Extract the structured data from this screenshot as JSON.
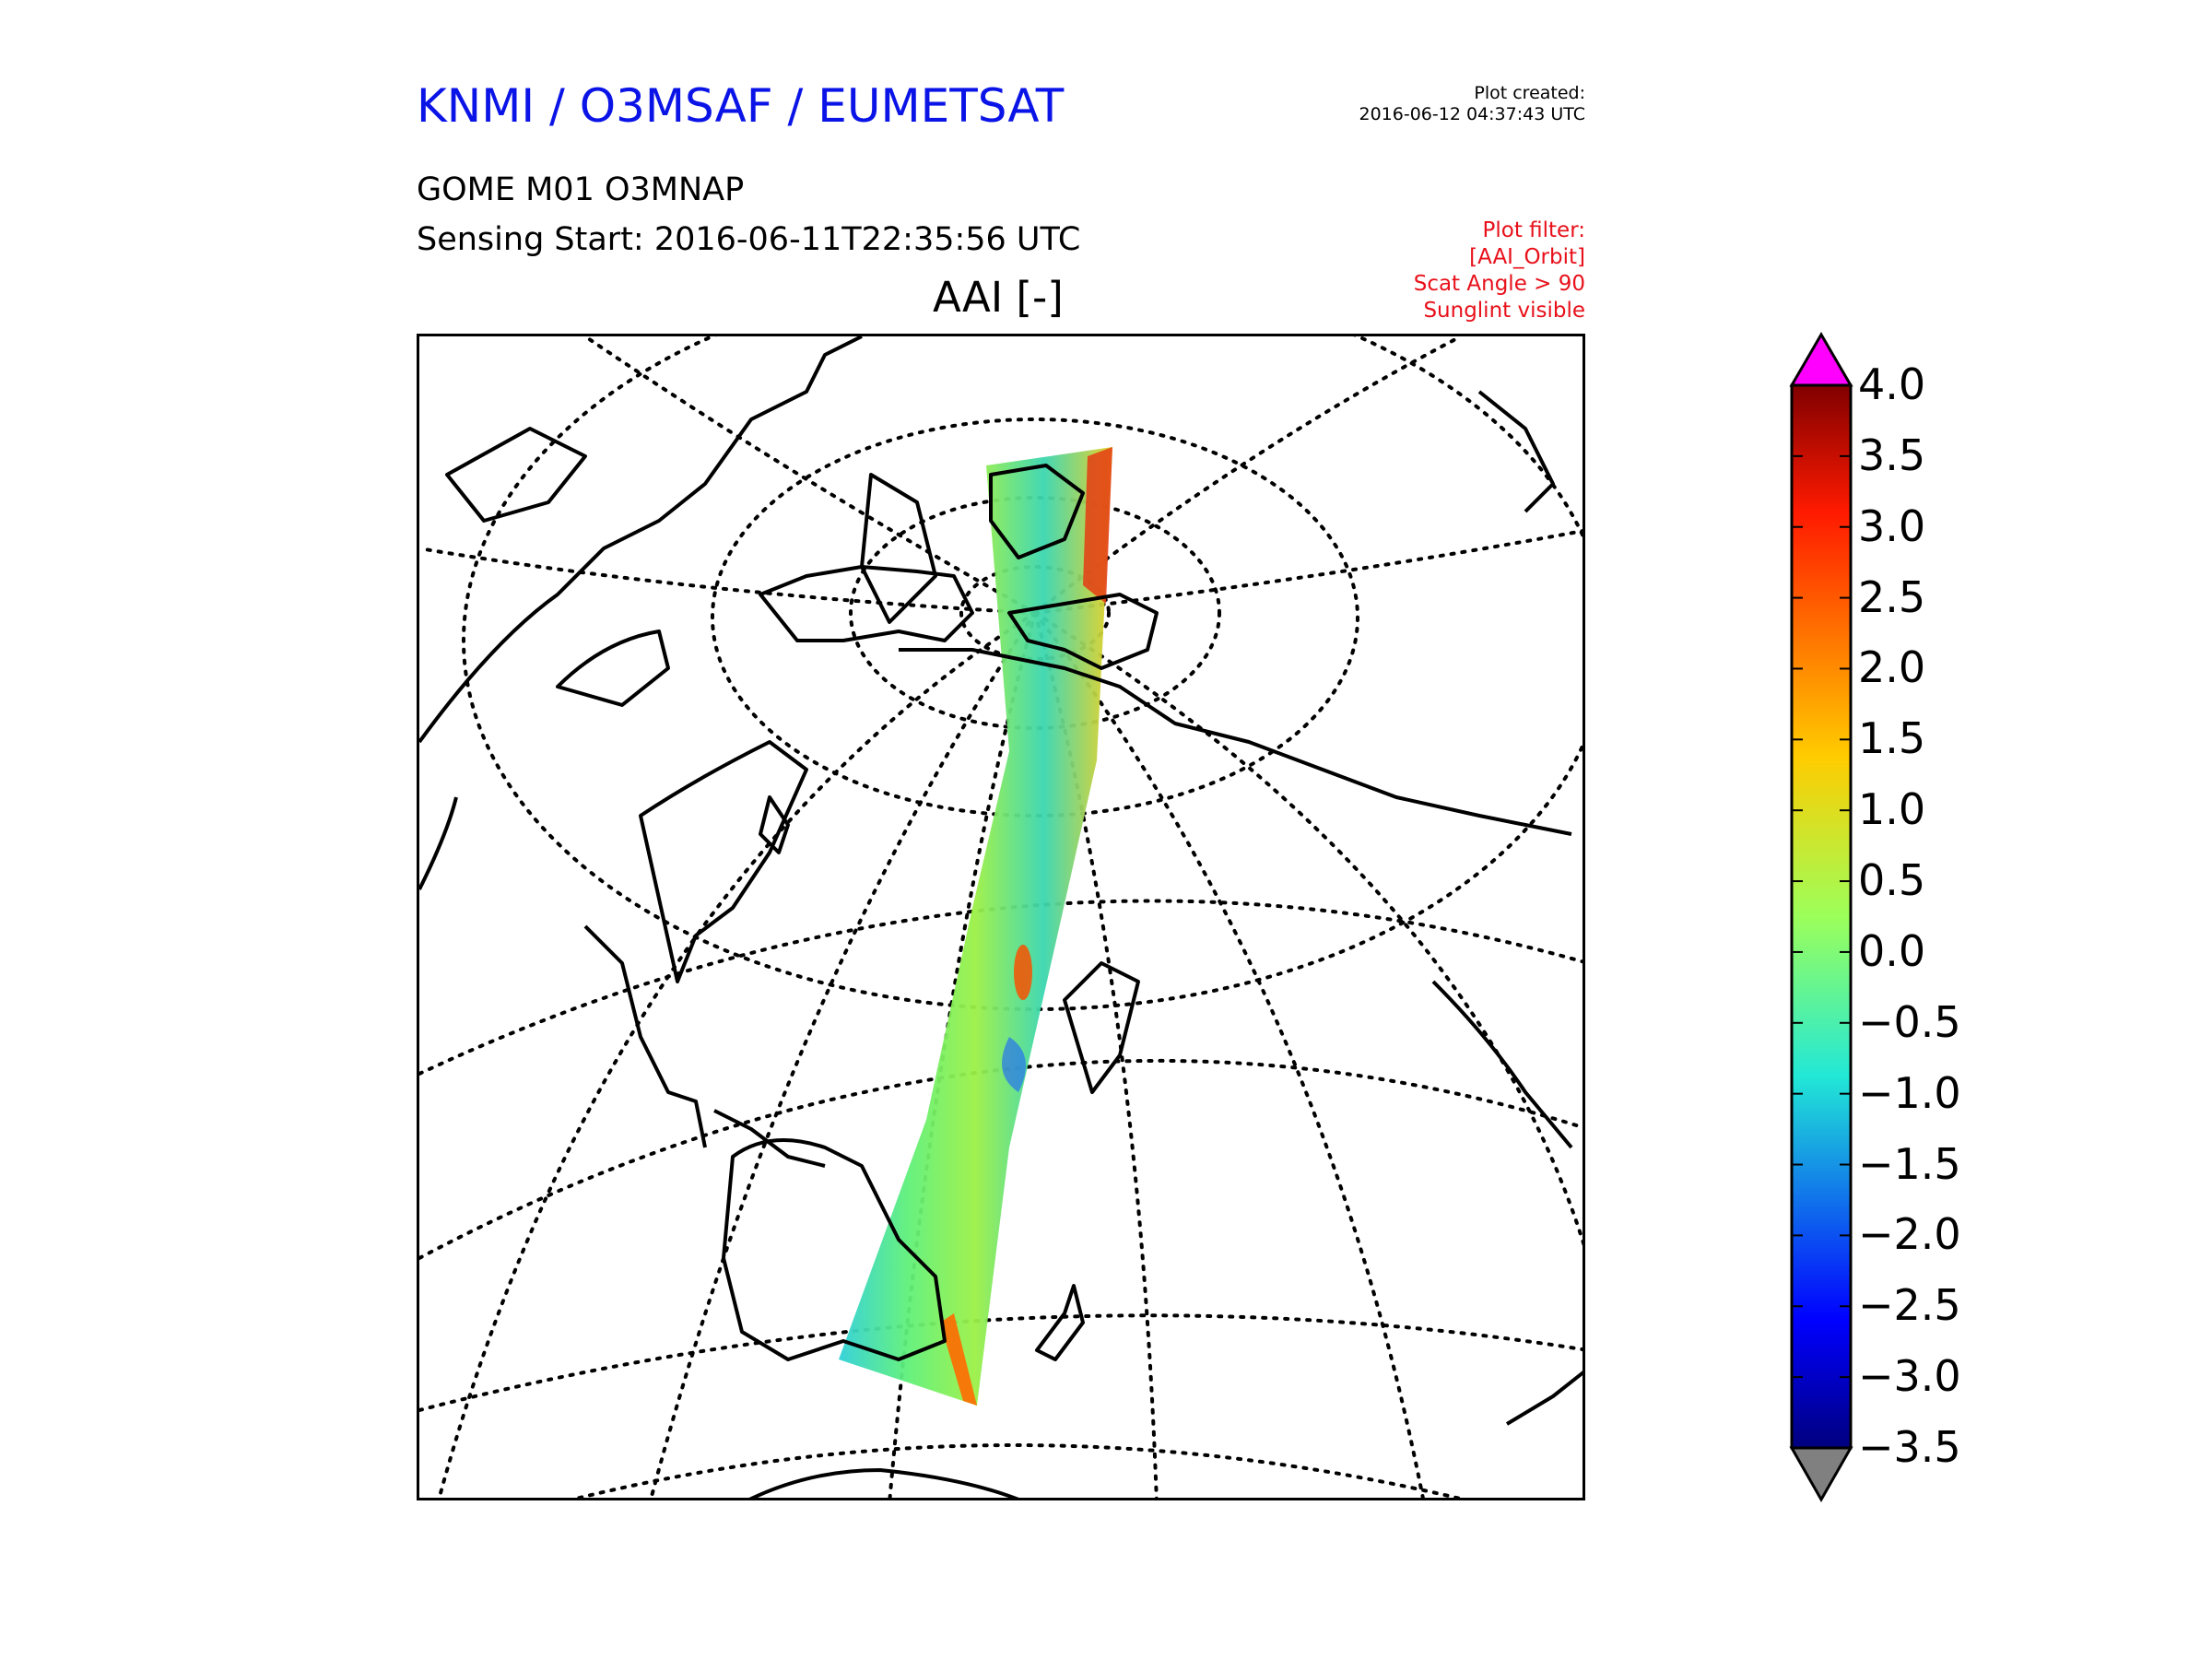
{
  "header": {
    "org_title": "KNMI / O3MSAF / EUMETSAT",
    "plot_created_label": "Plot created:",
    "plot_created_time": "2016-06-12 04:37:43 UTC",
    "product": "GOME M01 O3MNAP",
    "sensing_start": "Sensing Start: 2016-06-11T22:35:56 UTC",
    "plot_title": "AAI [-]"
  },
  "filter": {
    "heading": "Plot filter:",
    "lines": [
      "[AAI_Orbit]",
      "Scat Angle > 90",
      "Sunglint visible"
    ]
  },
  "colorbar": {
    "variable": "AAI",
    "min": -3.5,
    "max": 4.0,
    "extend": "both",
    "colormap": "jet",
    "ticks": [
      "4.0",
      "3.5",
      "3.0",
      "2.5",
      "2.0",
      "1.5",
      "1.0",
      "0.5",
      "0.0",
      "−0.5",
      "−1.0",
      "−1.5",
      "−2.0",
      "−2.5",
      "−3.0",
      "−3.5"
    ],
    "over_color": "#ff00ff",
    "under_color": "#808080"
  },
  "map": {
    "projection": "orthographic",
    "graticule_style": "dotted",
    "coastline_color": "#000000",
    "swath": "single GOME-2 orbit swath from Arctic to Southern Ocean"
  }
}
